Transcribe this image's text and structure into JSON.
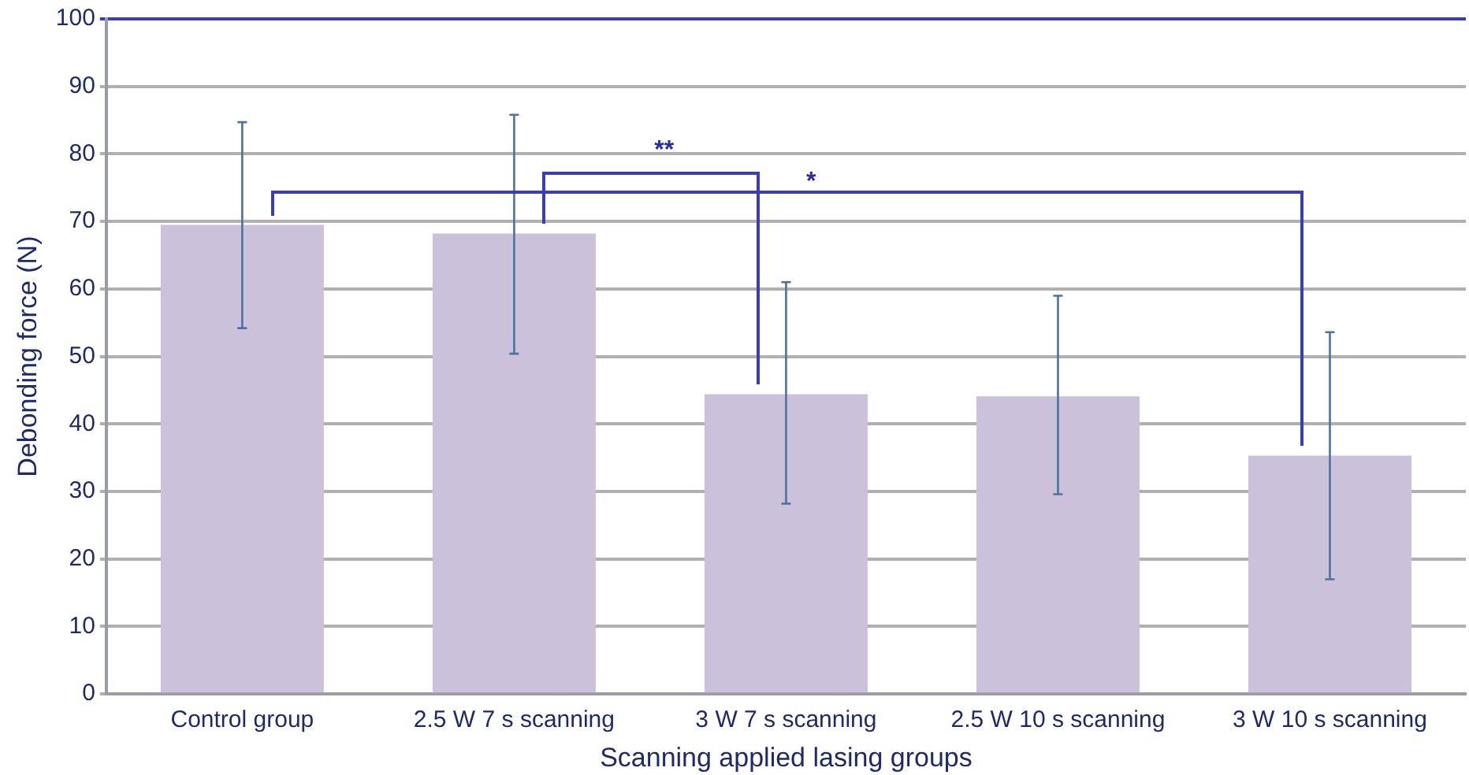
{
  "chart_data": {
    "type": "bar",
    "xlabel": "Scanning applied lasing groups",
    "ylabel": "Debonding force (N)",
    "categories": [
      "Control group",
      "2.5 W 7 s scanning",
      "3 W 7 s scanning",
      "2.5 W 10 s scanning",
      "3 W 10 s scanning"
    ],
    "values": [
      69.5,
      68.2,
      44.4,
      44.1,
      35.3
    ],
    "errors": [
      [
        54.2,
        84.7
      ],
      [
        50.4,
        85.8
      ],
      [
        28.2,
        61.0
      ],
      [
        29.6,
        59.0
      ],
      [
        17.0,
        53.6
      ]
    ],
    "color": "#cbc1da",
    "ylim": [
      0,
      100
    ],
    "yticks": [
      0,
      10,
      20,
      30,
      40,
      50,
      60,
      70,
      80,
      90,
      100
    ],
    "grid": "y",
    "legend": false,
    "annotations": [
      "**",
      "*"
    ]
  }
}
